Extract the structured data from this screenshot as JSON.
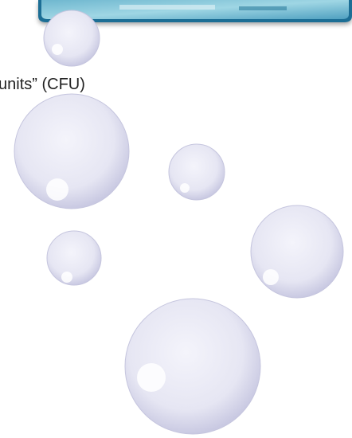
{
  "text": "units” (CFU)"
}
